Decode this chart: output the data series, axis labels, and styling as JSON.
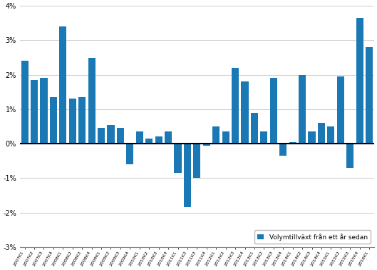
{
  "values": [
    2.4,
    1.85,
    1.9,
    1.35,
    3.4,
    1.3,
    1.35,
    2.5,
    0.45,
    0.55,
    0.45,
    -0.6,
    0.35,
    0.15,
    0.2,
    0.35,
    -0.85,
    -1.85,
    -1.0,
    -0.05,
    0.5,
    0.35,
    2.2,
    1.8,
    0.9,
    0.35,
    1.9,
    -0.35,
    0.05,
    2.0,
    0.35,
    0.6,
    0.5,
    1.95,
    -0.7,
    3.65,
    2.8
  ],
  "bar_color": "#1a79b4",
  "ylim": [
    -3.0,
    4.0
  ],
  "yticks": [
    -3,
    -2,
    -1,
    0,
    1,
    2,
    3,
    4
  ],
  "ytick_labels": [
    "-3%",
    "-2%",
    "-1%",
    "0%",
    "1%",
    "2%",
    "3%",
    "4%"
  ],
  "legend_label": "Volymtillväxt från ett år sedan",
  "background_color": "#ffffff",
  "grid_color": "#d0d0d0",
  "zero_line_color": "#000000"
}
